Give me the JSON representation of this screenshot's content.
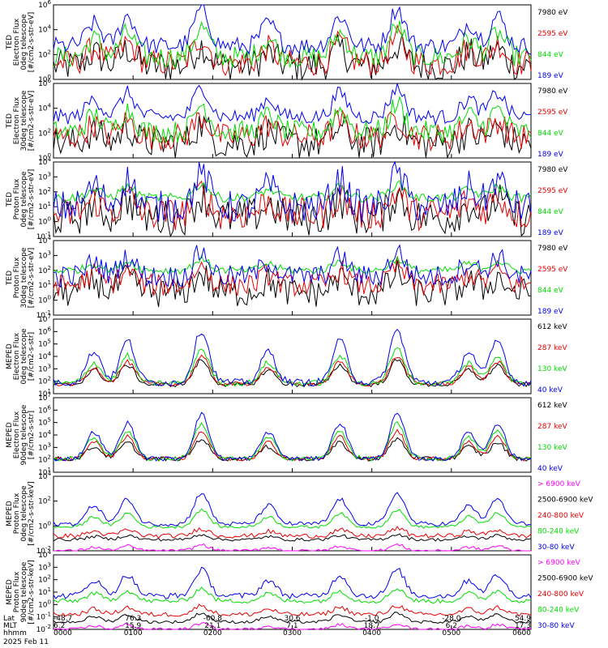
{
  "colors": {
    "black": "#000000",
    "red": "#e60000",
    "green": "#00dd00",
    "blue": "#0000ee",
    "magenta": "#ff00ff"
  },
  "chart_data": [
    {
      "type": "line",
      "ylabel": [
        "TED",
        "Electron Flux",
        "0deg telescope",
        "[#/cm2-s-str-eV]"
      ],
      "log_scale": true,
      "yticks": [
        {
          "base": "10",
          "exp": "0"
        },
        {
          "base": "10",
          "exp": "2"
        },
        {
          "base": "10",
          "exp": "4"
        },
        {
          "base": "10",
          "exp": "6"
        }
      ],
      "ytick_pos": [
        0,
        0.333,
        0.667,
        1
      ],
      "series": [
        {
          "name": "7980 eV",
          "color": "#000000",
          "baseline": 0.18,
          "peak": 0.45,
          "noise": 0.22
        },
        {
          "name": "2595 eV",
          "color": "#e60000",
          "baseline": 0.22,
          "peak": 0.55,
          "noise": 0.18
        },
        {
          "name": "844 eV",
          "color": "#00dd00",
          "baseline": 0.3,
          "peak": 0.7,
          "noise": 0.15
        },
        {
          "name": "189 eV",
          "color": "#0000ee",
          "baseline": 0.45,
          "peak": 0.95,
          "noise": 0.12
        }
      ]
    },
    {
      "type": "line",
      "ylabel": [
        "TED",
        "Electron Flux",
        "30deg telescope",
        "[#/cm2-s-str-eV]"
      ],
      "log_scale": true,
      "yticks": [
        {
          "base": "10",
          "exp": "0"
        },
        {
          "base": "10",
          "exp": "2"
        },
        {
          "base": "10",
          "exp": "4"
        },
        {
          "base": "10",
          "exp": "6"
        }
      ],
      "ytick_pos": [
        0,
        0.333,
        0.667,
        1
      ],
      "series": [
        {
          "name": "7980 eV",
          "color": "#000000",
          "baseline": 0.2,
          "peak": 0.45,
          "noise": 0.22
        },
        {
          "name": "2595 eV",
          "color": "#e60000",
          "baseline": 0.28,
          "peak": 0.55,
          "noise": 0.18
        },
        {
          "name": "844 eV",
          "color": "#00dd00",
          "baseline": 0.35,
          "peak": 0.72,
          "noise": 0.15
        },
        {
          "name": "189 eV",
          "color": "#0000ee",
          "baseline": 0.55,
          "peak": 0.95,
          "noise": 0.1
        }
      ]
    },
    {
      "type": "line",
      "ylabel": [
        "TED",
        "Proton Flux",
        "0deg telescope",
        "[#/cm2-s-str-eV]"
      ],
      "log_scale": true,
      "yticks": [
        {
          "base": "10",
          "exp": "-1"
        },
        {
          "base": "10",
          "exp": "0"
        },
        {
          "base": "10",
          "exp": "1"
        },
        {
          "base": "10",
          "exp": "2"
        },
        {
          "base": "10",
          "exp": "3"
        },
        {
          "base": "10",
          "exp": "4"
        }
      ],
      "ytick_pos": [
        0,
        0.2,
        0.4,
        0.6,
        0.8,
        1
      ],
      "series": [
        {
          "name": "7980 eV",
          "color": "#000000",
          "baseline": 0.25,
          "peak": 0.55,
          "noise": 0.25
        },
        {
          "name": "2595 eV",
          "color": "#e60000",
          "baseline": 0.3,
          "peak": 0.6,
          "noise": 0.22
        },
        {
          "name": "844 eV",
          "color": "#00dd00",
          "baseline": 0.52,
          "peak": 0.7,
          "noise": 0.06
        },
        {
          "name": "189 eV",
          "color": "#0000ee",
          "baseline": 0.4,
          "peak": 0.85,
          "noise": 0.22
        }
      ]
    },
    {
      "type": "line",
      "ylabel": [
        "TED",
        "Proton Flux",
        "30deg telescope",
        "[#/cm2-s-str-eV]"
      ],
      "log_scale": true,
      "yticks": [
        {
          "base": "10",
          "exp": "-1"
        },
        {
          "base": "10",
          "exp": "0"
        },
        {
          "base": "10",
          "exp": "1"
        },
        {
          "base": "10",
          "exp": "2"
        },
        {
          "base": "10",
          "exp": "3"
        },
        {
          "base": "10",
          "exp": "4"
        }
      ],
      "ytick_pos": [
        0,
        0.2,
        0.4,
        0.6,
        0.8,
        1
      ],
      "series": [
        {
          "name": "7980 eV",
          "color": "#000000",
          "baseline": 0.3,
          "peak": 0.55,
          "noise": 0.2
        },
        {
          "name": "2595 eV",
          "color": "#e60000",
          "baseline": 0.4,
          "peak": 0.65,
          "noise": 0.15
        },
        {
          "name": "844 eV",
          "color": "#00dd00",
          "baseline": 0.6,
          "peak": 0.75,
          "noise": 0.05
        },
        {
          "name": "189 eV",
          "color": "#0000ee",
          "baseline": 0.52,
          "peak": 0.85,
          "noise": 0.15
        }
      ]
    },
    {
      "type": "line",
      "ylabel": [
        "MEPED",
        "Electron Flux",
        "0deg telescope",
        "[#/cm2-s-str]"
      ],
      "log_scale": true,
      "yticks": [
        {
          "base": "10",
          "exp": "1"
        },
        {
          "base": "10",
          "exp": "2"
        },
        {
          "base": "10",
          "exp": "3"
        },
        {
          "base": "10",
          "exp": "4"
        },
        {
          "base": "10",
          "exp": "5"
        },
        {
          "base": "10",
          "exp": "6"
        },
        {
          "base": "10",
          "exp": "7"
        }
      ],
      "ytick_pos": [
        0,
        0.167,
        0.333,
        0.5,
        0.667,
        0.833,
        1
      ],
      "series": [
        {
          "name": "612 keV",
          "color": "#000000",
          "baseline": 0.12,
          "peak": 0.45,
          "noise": 0.03
        },
        {
          "name": "287 keV",
          "color": "#e60000",
          "baseline": 0.13,
          "peak": 0.5,
          "noise": 0.03
        },
        {
          "name": "130 keV",
          "color": "#00dd00",
          "baseline": 0.14,
          "peak": 0.6,
          "noise": 0.04
        },
        {
          "name": "40 keV",
          "color": "#0000ee",
          "baseline": 0.15,
          "peak": 0.85,
          "noise": 0.05
        }
      ]
    },
    {
      "type": "line",
      "ylabel": [
        "MEPED",
        "Electron Flux",
        "90deg telescope",
        "[#/cm2-s-str]"
      ],
      "log_scale": true,
      "yticks": [
        {
          "base": "10",
          "exp": "1"
        },
        {
          "base": "10",
          "exp": "2"
        },
        {
          "base": "10",
          "exp": "3"
        },
        {
          "base": "10",
          "exp": "4"
        },
        {
          "base": "10",
          "exp": "5"
        },
        {
          "base": "10",
          "exp": "6"
        },
        {
          "base": "10",
          "exp": "7"
        }
      ],
      "ytick_pos": [
        0,
        0.167,
        0.333,
        0.5,
        0.667,
        0.833,
        1
      ],
      "series": [
        {
          "name": "612 keV",
          "color": "#000000",
          "baseline": 0.18,
          "peak": 0.45,
          "noise": 0.03
        },
        {
          "name": "287 keV",
          "color": "#e60000",
          "baseline": 0.18,
          "peak": 0.55,
          "noise": 0.03
        },
        {
          "name": "130 keV",
          "color": "#00dd00",
          "baseline": 0.18,
          "peak": 0.65,
          "noise": 0.03
        },
        {
          "name": "40 keV",
          "color": "#0000ee",
          "baseline": 0.18,
          "peak": 0.78,
          "noise": 0.03
        }
      ]
    },
    {
      "type": "line",
      "ylabel": [
        "MEPED",
        "Proton Flux",
        "0deg telescope",
        "[#/cm2-s-str-keV]"
      ],
      "log_scale": true,
      "yticks": [
        {
          "base": "10",
          "exp": "-2"
        },
        {
          "base": "10",
          "exp": "0"
        },
        {
          "base": "10",
          "exp": "2"
        },
        {
          "base": "10",
          "exp": "4"
        }
      ],
      "ytick_pos": [
        0,
        0.333,
        0.667,
        1
      ],
      "series": [
        {
          "name": "> 6900 keV",
          "color": "#ff00ff",
          "baseline": 0.0,
          "peak": 0.08,
          "noise": 0.02
        },
        {
          "name": "2500-6900 keV",
          "color": "#000000",
          "baseline": 0.15,
          "peak": 0.22,
          "noise": 0.02
        },
        {
          "name": "240-800 keV",
          "color": "#e60000",
          "baseline": 0.2,
          "peak": 0.3,
          "noise": 0.03
        },
        {
          "name": "80-240 keV",
          "color": "#00dd00",
          "baseline": 0.32,
          "peak": 0.55,
          "noise": 0.02
        },
        {
          "name": "30-80 keV",
          "color": "#0000ee",
          "baseline": 0.36,
          "peak": 0.78,
          "noise": 0.03
        }
      ]
    },
    {
      "type": "line",
      "ylabel": [
        "MEPED",
        "Proton Flux",
        "90deg telescope",
        "[#/cm2-s-str-keV]"
      ],
      "log_scale": true,
      "yticks": [
        {
          "base": "10",
          "exp": "-2"
        },
        {
          "base": "10",
          "exp": "-1"
        },
        {
          "base": "10",
          "exp": "0"
        },
        {
          "base": "10",
          "exp": "1"
        },
        {
          "base": "10",
          "exp": "2"
        },
        {
          "base": "10",
          "exp": "3"
        },
        {
          "base": "10",
          "exp": "4"
        }
      ],
      "ytick_pos": [
        0,
        0.167,
        0.333,
        0.5,
        0.667,
        0.833,
        1
      ],
      "series": [
        {
          "name": "> 6900 keV",
          "color": "#ff00ff",
          "baseline": 0.0,
          "peak": 0.08,
          "noise": 0.02
        },
        {
          "name": "2500-6900 keV",
          "color": "#000000",
          "baseline": 0.1,
          "peak": 0.22,
          "noise": 0.02
        },
        {
          "name": "240-800 keV",
          "color": "#e60000",
          "baseline": 0.2,
          "peak": 0.32,
          "noise": 0.03
        },
        {
          "name": "80-240 keV",
          "color": "#00dd00",
          "baseline": 0.38,
          "peak": 0.55,
          "noise": 0.03
        },
        {
          "name": "30-80 keV",
          "color": "#0000ee",
          "baseline": 0.45,
          "peak": 0.8,
          "noise": 0.04
        }
      ]
    }
  ],
  "x_axis": {
    "row_labels": [
      "Lat",
      "MLT",
      "hhmm"
    ],
    "ticks": [
      {
        "lat": "-48.7",
        "mlt": "6.2",
        "hhmm": "0000"
      },
      {
        "lat": "76.3",
        "mlt": "15.9",
        "hhmm": "0100"
      },
      {
        "lat": "-60.8",
        "mlt": "21.1",
        "hhmm": "0200"
      },
      {
        "lat": "30.6",
        "mlt": "7.1",
        "hhmm": "0300"
      },
      {
        "lat": "-1.0",
        "mlt": "18.7",
        "hhmm": "0400"
      },
      {
        "lat": "-28.0",
        "mlt": "6.2",
        "hhmm": "0500"
      },
      {
        "lat": "54.9",
        "mlt": "17.3",
        "hhmm": "0600"
      }
    ],
    "date": "2025 Feb 11"
  }
}
